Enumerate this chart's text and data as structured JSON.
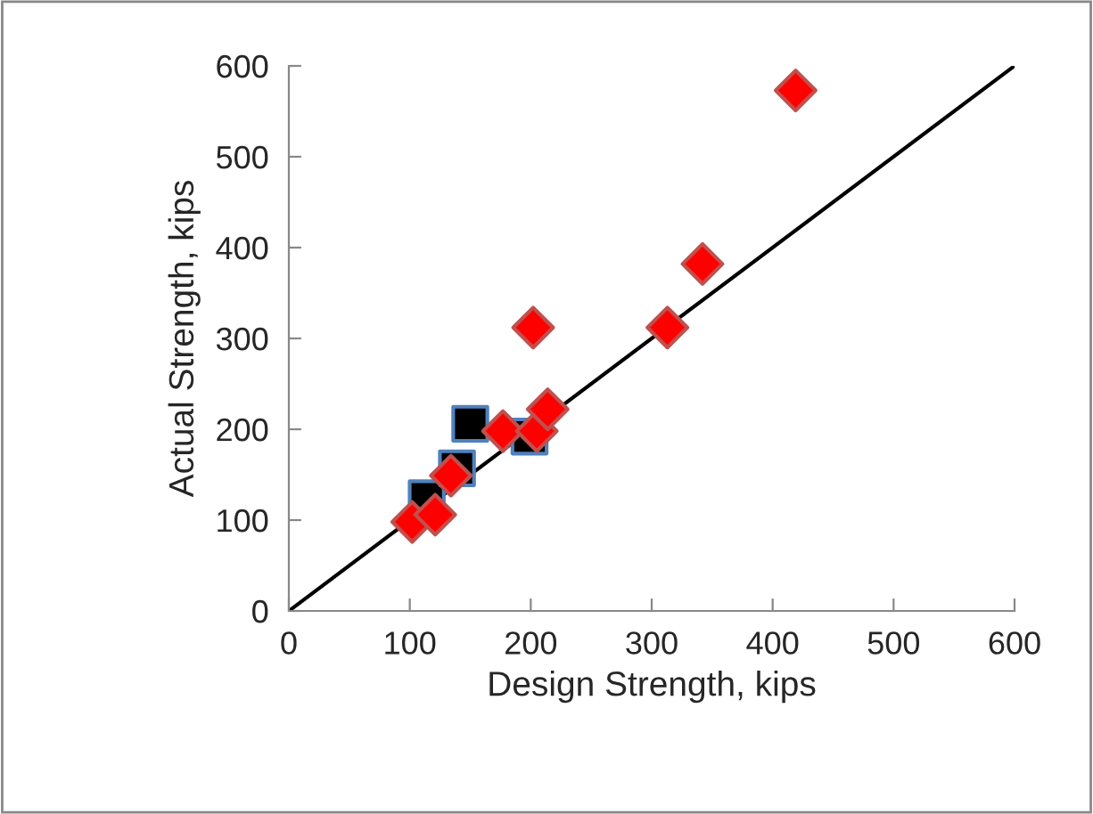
{
  "chart_data": {
    "type": "scatter",
    "xlabel": "Design Strength, kips",
    "ylabel": "Actual Strength, kips",
    "xlim": [
      0,
      600
    ],
    "ylim": [
      0,
      600
    ],
    "xticks": [
      0,
      100,
      200,
      300,
      400,
      500,
      600
    ],
    "yticks": [
      0,
      100,
      200,
      300,
      400,
      500,
      600
    ],
    "grid": false,
    "legend": false,
    "series": [
      {
        "type": "line",
        "color": "#000000",
        "x": [
          0,
          600
        ],
        "values": [
          0,
          600
        ],
        "marker": "none"
      },
      {
        "color": "#000000",
        "marker": "square",
        "x": [
          114,
          139,
          150,
          199
        ],
        "values": [
          124,
          157,
          206,
          192
        ]
      },
      {
        "color": "#ff0000",
        "marker": "diamond",
        "x": [
          102,
          121,
          134,
          177,
          205,
          214,
          202,
          313,
          342,
          419
        ],
        "values": [
          98,
          106,
          149,
          198,
          198,
          222,
          312,
          312,
          382,
          573
        ]
      }
    ]
  }
}
